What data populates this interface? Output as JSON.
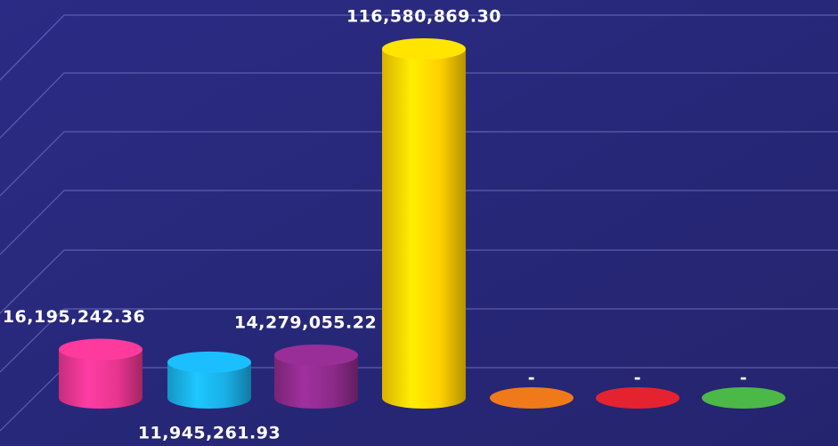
{
  "chart_data": {
    "type": "cylinder-bar",
    "values": [
      16195242.36,
      11945261.93,
      14279055.22,
      116580869.3,
      0,
      0,
      0
    ],
    "value_labels": [
      "16,195,242.36",
      "11,945,261.93",
      "14,279,055.22",
      "116,580,869.30",
      "-",
      "-",
      "-"
    ],
    "colors": [
      "#e8358f",
      "#19aee6",
      "#8c2a8a",
      "#ffd000",
      "#f07a1a",
      "#e52330",
      "#4cb848"
    ]
  }
}
